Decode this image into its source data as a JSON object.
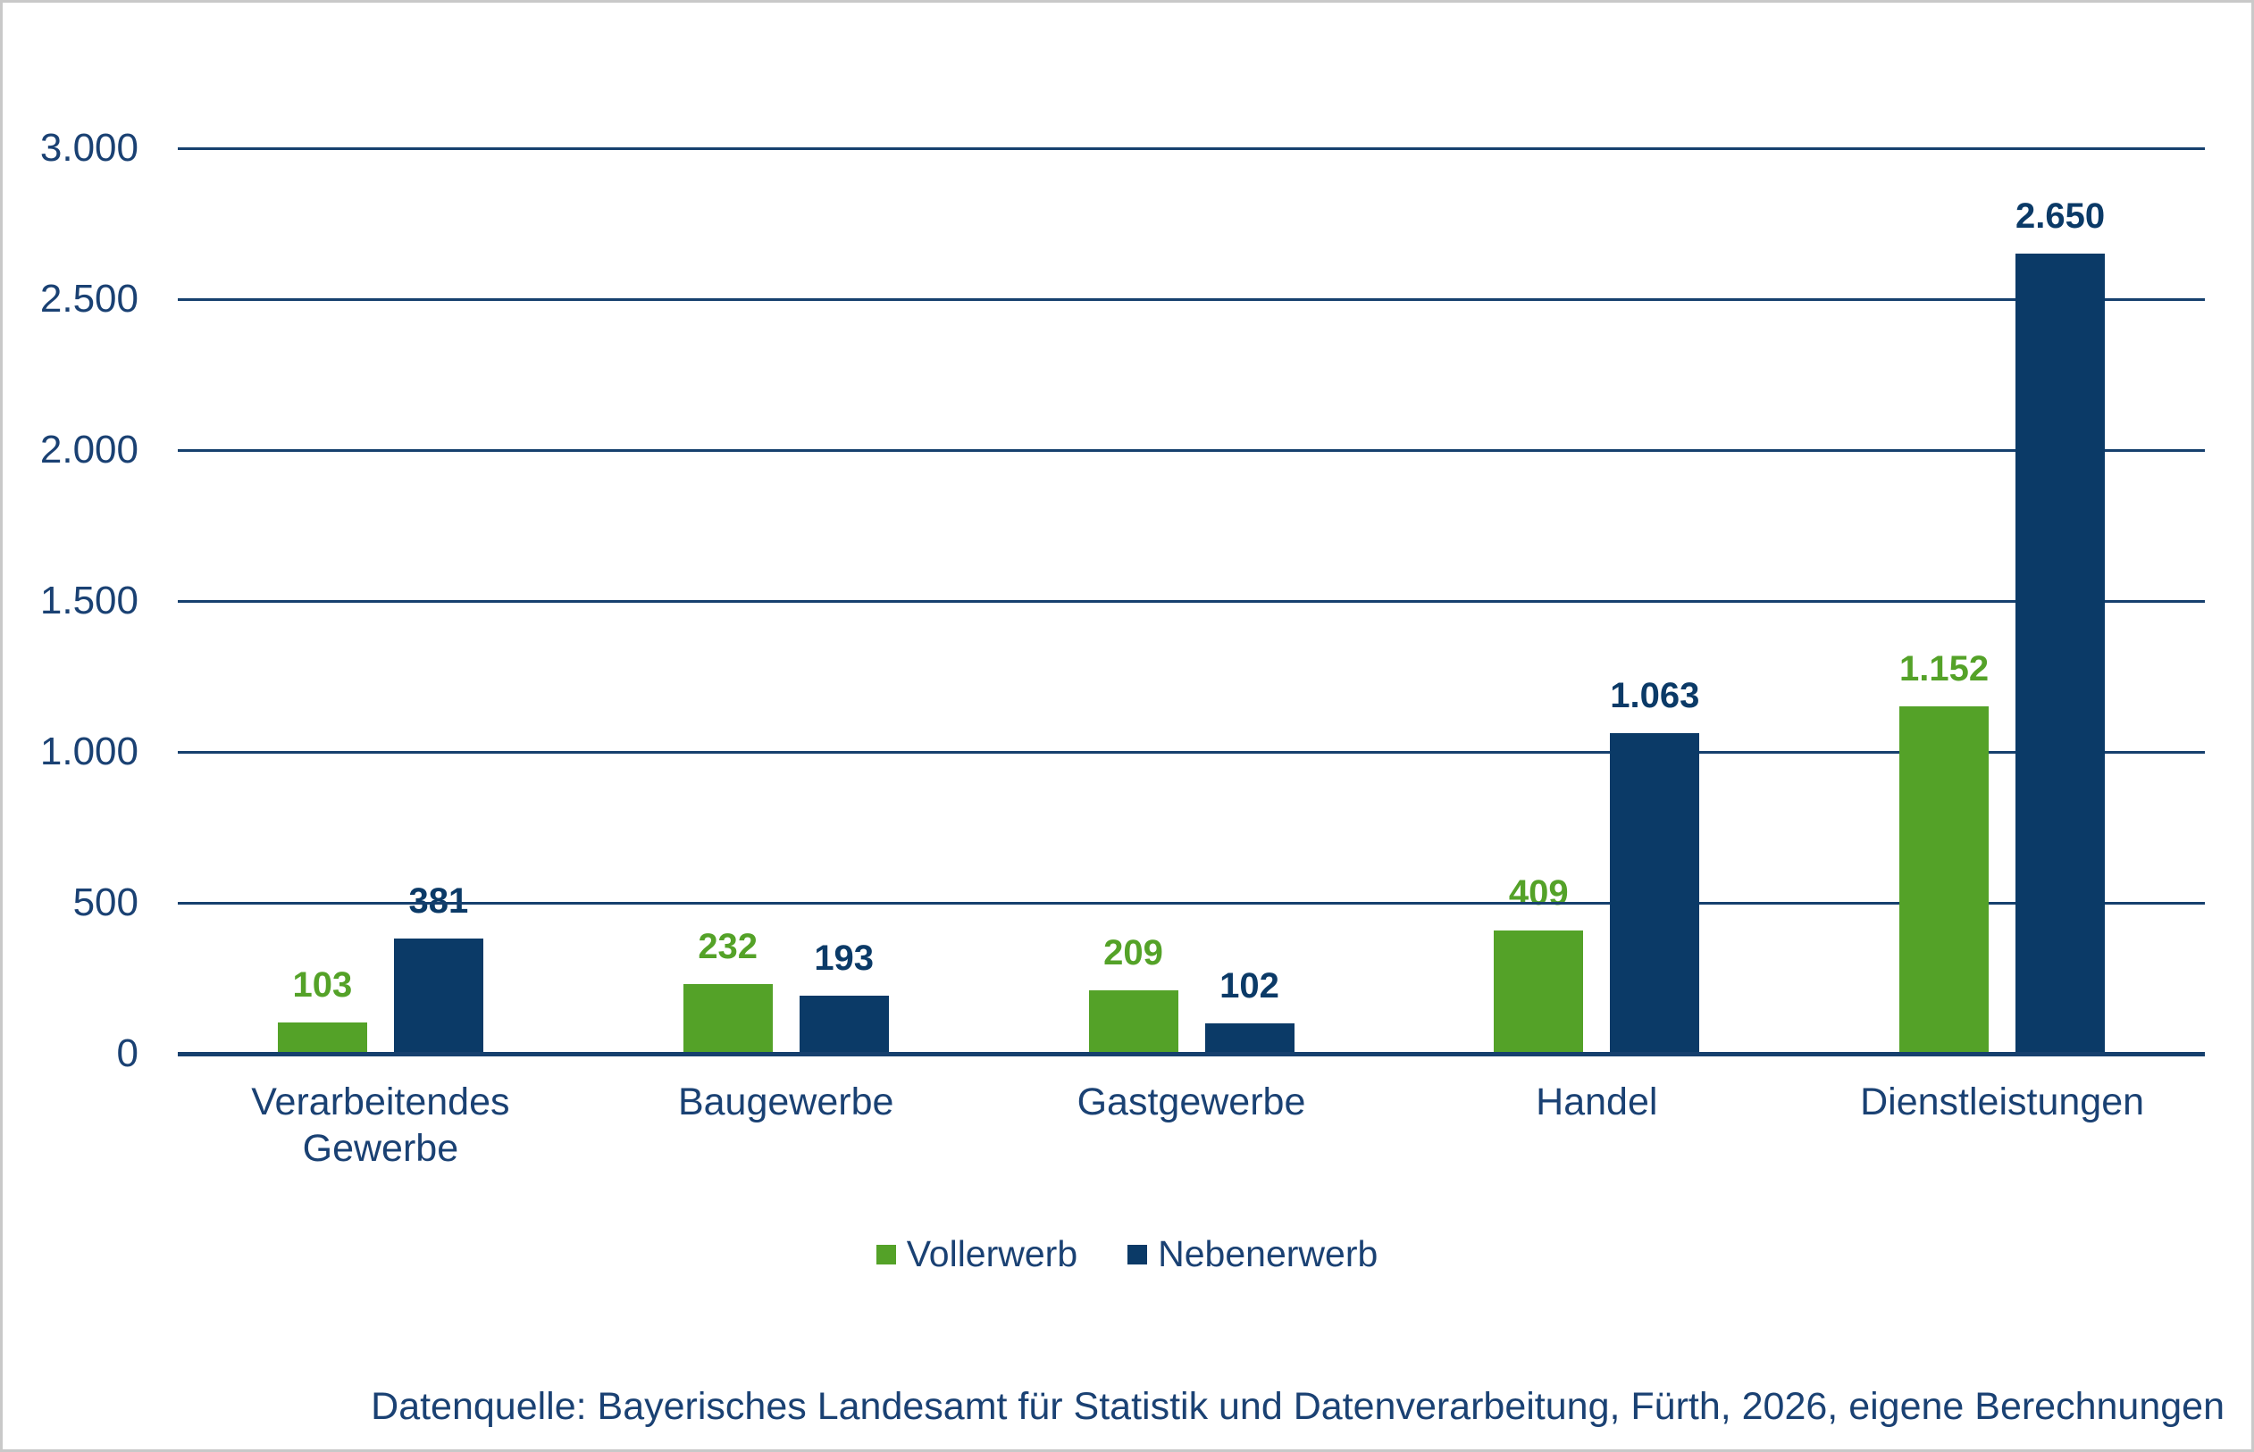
{
  "chart_data": {
    "type": "bar",
    "title": "",
    "categories": [
      "Verarbeitendes Gewerbe",
      "Baugewerbe",
      "Gastgewerbe",
      "Handel",
      "Dienstleistungen"
    ],
    "series": [
      {
        "name": "Vollerwerb",
        "color": "#54A228",
        "values": [
          103,
          232,
          209,
          409,
          1152
        ],
        "labels": [
          "103",
          "232",
          "209",
          "409",
          "1.152"
        ]
      },
      {
        "name": "Nebenerwerb",
        "color": "#0B3A67",
        "values": [
          381,
          193,
          102,
          1063,
          2650
        ],
        "labels": [
          "381",
          "193",
          "102",
          "1.063",
          "2.650"
        ]
      }
    ],
    "y_axis": {
      "min": 0,
      "max": 3000,
      "step": 500,
      "tick_labels": [
        "0",
        "500",
        "1.000",
        "1.500",
        "2.000",
        "2.500",
        "3.000"
      ]
    },
    "grid": true,
    "legend_position": "bottom"
  },
  "colors": {
    "green": "#54A228",
    "navy": "#0B3A67",
    "axis_line": "#16406E",
    "text": "#1A4173",
    "frame": "#C9C9C9"
  },
  "legend": {
    "items": [
      {
        "label": "Vollerwerb",
        "color": "#54A228"
      },
      {
        "label": "Nebenerwerb",
        "color": "#0B3A67"
      }
    ]
  },
  "footer": {
    "source_note": "Datenquelle: Bayerisches Landesamt für Statistik und Datenverarbeitung, Fürth, 2026, eigene Berechnungen"
  }
}
